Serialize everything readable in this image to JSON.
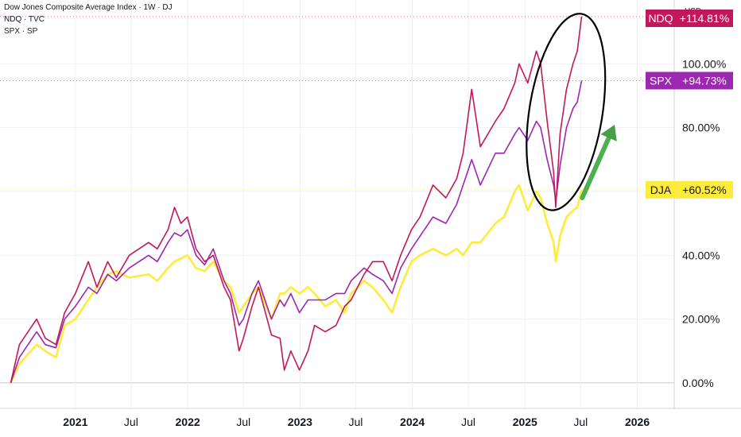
{
  "header": {
    "title": "Dow Jones Composite Average Index · 1W · DJ",
    "series_lines": [
      "NDQ · TVC",
      "SPX · SP"
    ]
  },
  "currency": "USD",
  "chart_data": {
    "type": "line",
    "x_ticks": [
      {
        "date": "2021-01-01",
        "label": "2021",
        "bold": true
      },
      {
        "date": "2021-07-01",
        "label": "Jul",
        "bold": false
      },
      {
        "date": "2022-01-01",
        "label": "2022",
        "bold": true
      },
      {
        "date": "2022-07-01",
        "label": "Jul",
        "bold": false
      },
      {
        "date": "2023-01-01",
        "label": "2023",
        "bold": true
      },
      {
        "date": "2023-07-01",
        "label": "Jul",
        "bold": false
      },
      {
        "date": "2024-01-01",
        "label": "2024",
        "bold": true
      },
      {
        "date": "2024-07-01",
        "label": "Jul",
        "bold": false
      },
      {
        "date": "2025-01-01",
        "label": "2025",
        "bold": true
      },
      {
        "date": "2025-07-01",
        "label": "Jul",
        "bold": false
      },
      {
        "date": "2026-01-01",
        "label": "2026",
        "bold": true
      }
    ],
    "xlim": [
      "2020-05-01",
      "2026-05-01"
    ],
    "ylim": [
      -8,
      120
    ],
    "y_ticks": [
      0,
      20,
      40,
      60,
      80,
      100
    ],
    "y_tick_labels": [
      "0.00%",
      "20.00%",
      "40.00%",
      "60.00%",
      "80.00%",
      "100.00%"
    ],
    "grid": true,
    "series": [
      {
        "name": "NDQ",
        "color": "#c2185b",
        "badge": "+114.81%",
        "last_value": 114.81,
        "points": [
          [
            "2020-06-05",
            0
          ],
          [
            "2020-07-03",
            12
          ],
          [
            "2020-08-28",
            20
          ],
          [
            "2020-09-25",
            14
          ],
          [
            "2020-10-30",
            12
          ],
          [
            "2020-11-27",
            22
          ],
          [
            "2021-01-01",
            28
          ],
          [
            "2021-02-12",
            38
          ],
          [
            "2021-03-12",
            30
          ],
          [
            "2021-04-16",
            38
          ],
          [
            "2021-05-14",
            33
          ],
          [
            "2021-06-25",
            40
          ],
          [
            "2021-08-27",
            44
          ],
          [
            "2021-09-24",
            42
          ],
          [
            "2021-10-29",
            48
          ],
          [
            "2021-11-19",
            55
          ],
          [
            "2021-12-10",
            50
          ],
          [
            "2021-12-31",
            52
          ],
          [
            "2022-01-28",
            42
          ],
          [
            "2022-02-25",
            38
          ],
          [
            "2022-03-25",
            40
          ],
          [
            "2022-04-29",
            30
          ],
          [
            "2022-05-20",
            26
          ],
          [
            "2022-06-17",
            10
          ],
          [
            "2022-07-01",
            14
          ],
          [
            "2022-07-29",
            24
          ],
          [
            "2022-08-19",
            30
          ],
          [
            "2022-09-30",
            15
          ],
          [
            "2022-10-28",
            14
          ],
          [
            "2022-11-11",
            4
          ],
          [
            "2022-12-02",
            10
          ],
          [
            "2022-12-30",
            4
          ],
          [
            "2023-01-27",
            10
          ],
          [
            "2023-02-17",
            18
          ],
          [
            "2023-03-24",
            16
          ],
          [
            "2023-04-28",
            18
          ],
          [
            "2023-05-26",
            24
          ],
          [
            "2023-06-16",
            26
          ],
          [
            "2023-07-28",
            34
          ],
          [
            "2023-08-25",
            38
          ],
          [
            "2023-09-29",
            38
          ],
          [
            "2023-10-27",
            32
          ],
          [
            "2023-11-24",
            40
          ],
          [
            "2023-12-29",
            48
          ],
          [
            "2024-01-26",
            52
          ],
          [
            "2024-03-08",
            62
          ],
          [
            "2024-04-19",
            58
          ],
          [
            "2024-05-24",
            64
          ],
          [
            "2024-06-14",
            72
          ],
          [
            "2024-07-12",
            92
          ],
          [
            "2024-08-09",
            74
          ],
          [
            "2024-09-27",
            82
          ],
          [
            "2024-10-25",
            86
          ],
          [
            "2024-11-29",
            94
          ],
          [
            "2024-12-13",
            100
          ],
          [
            "2025-01-10",
            94
          ],
          [
            "2025-02-07",
            104
          ],
          [
            "2025-02-21",
            100
          ],
          [
            "2025-03-14",
            82
          ],
          [
            "2025-04-04",
            66
          ],
          [
            "2025-04-11",
            55
          ],
          [
            "2025-04-25",
            78
          ],
          [
            "2025-05-16",
            92
          ],
          [
            "2025-06-06",
            100
          ],
          [
            "2025-06-20",
            104
          ],
          [
            "2025-07-04",
            114.81
          ]
        ]
      },
      {
        "name": "SPX",
        "color": "#9c27b0",
        "badge": "+94.73%",
        "last_value": 94.73,
        "points": [
          [
            "2020-06-05",
            0
          ],
          [
            "2020-07-03",
            8
          ],
          [
            "2020-08-28",
            16
          ],
          [
            "2020-09-25",
            12
          ],
          [
            "2020-10-30",
            11
          ],
          [
            "2020-11-27",
            20
          ],
          [
            "2021-01-01",
            24
          ],
          [
            "2021-02-12",
            30
          ],
          [
            "2021-03-12",
            28
          ],
          [
            "2021-04-16",
            34
          ],
          [
            "2021-05-14",
            32
          ],
          [
            "2021-06-25",
            36
          ],
          [
            "2021-08-27",
            40
          ],
          [
            "2021-09-24",
            38
          ],
          [
            "2021-10-29",
            44
          ],
          [
            "2021-11-19",
            47
          ],
          [
            "2021-12-10",
            46
          ],
          [
            "2021-12-31",
            48
          ],
          [
            "2022-01-28",
            40
          ],
          [
            "2022-02-25",
            37
          ],
          [
            "2022-03-25",
            42
          ],
          [
            "2022-04-29",
            32
          ],
          [
            "2022-05-20",
            28
          ],
          [
            "2022-06-17",
            18
          ],
          [
            "2022-07-01",
            20
          ],
          [
            "2022-07-29",
            28
          ],
          [
            "2022-08-19",
            32
          ],
          [
            "2022-09-30",
            20
          ],
          [
            "2022-10-28",
            26
          ],
          [
            "2022-11-11",
            24
          ],
          [
            "2022-12-02",
            28
          ],
          [
            "2022-12-30",
            22
          ],
          [
            "2023-01-27",
            26
          ],
          [
            "2023-02-17",
            26
          ],
          [
            "2023-03-24",
            26
          ],
          [
            "2023-04-28",
            28
          ],
          [
            "2023-05-26",
            28
          ],
          [
            "2023-06-16",
            32
          ],
          [
            "2023-07-28",
            36
          ],
          [
            "2023-08-25",
            34
          ],
          [
            "2023-09-29",
            32
          ],
          [
            "2023-10-27",
            28
          ],
          [
            "2023-11-24",
            36
          ],
          [
            "2023-12-29",
            42
          ],
          [
            "2024-01-26",
            46
          ],
          [
            "2024-03-08",
            52
          ],
          [
            "2024-04-19",
            50
          ],
          [
            "2024-05-24",
            56
          ],
          [
            "2024-06-14",
            62
          ],
          [
            "2024-07-12",
            70
          ],
          [
            "2024-08-09",
            62
          ],
          [
            "2024-09-27",
            72
          ],
          [
            "2024-10-25",
            72
          ],
          [
            "2024-11-29",
            78
          ],
          [
            "2024-12-13",
            80
          ],
          [
            "2025-01-10",
            76
          ],
          [
            "2025-02-07",
            82
          ],
          [
            "2025-02-21",
            80
          ],
          [
            "2025-03-14",
            70
          ],
          [
            "2025-04-04",
            62
          ],
          [
            "2025-04-11",
            57
          ],
          [
            "2025-04-25",
            68
          ],
          [
            "2025-05-16",
            80
          ],
          [
            "2025-06-06",
            86
          ],
          [
            "2025-06-20",
            88
          ],
          [
            "2025-07-04",
            94.73
          ]
        ]
      },
      {
        "name": "DJA",
        "color": "#ffeb3b",
        "badge": "+60.52%",
        "last_value": 60.52,
        "points": [
          [
            "2020-06-05",
            0
          ],
          [
            "2020-07-03",
            6
          ],
          [
            "2020-08-28",
            12
          ],
          [
            "2020-09-25",
            10
          ],
          [
            "2020-10-30",
            8
          ],
          [
            "2020-11-27",
            18
          ],
          [
            "2021-01-01",
            20
          ],
          [
            "2021-02-12",
            26
          ],
          [
            "2021-03-12",
            30
          ],
          [
            "2021-04-16",
            34
          ],
          [
            "2021-05-14",
            35
          ],
          [
            "2021-06-25",
            33
          ],
          [
            "2021-08-27",
            34
          ],
          [
            "2021-09-24",
            32
          ],
          [
            "2021-10-29",
            36
          ],
          [
            "2021-11-19",
            38
          ],
          [
            "2021-12-10",
            39
          ],
          [
            "2021-12-31",
            40
          ],
          [
            "2022-01-28",
            36
          ],
          [
            "2022-02-25",
            35
          ],
          [
            "2022-03-25",
            38
          ],
          [
            "2022-04-29",
            32
          ],
          [
            "2022-05-20",
            30
          ],
          [
            "2022-06-17",
            22
          ],
          [
            "2022-07-01",
            24
          ],
          [
            "2022-07-29",
            28
          ],
          [
            "2022-08-19",
            30
          ],
          [
            "2022-09-30",
            20
          ],
          [
            "2022-10-28",
            28
          ],
          [
            "2022-11-11",
            28
          ],
          [
            "2022-12-02",
            30
          ],
          [
            "2022-12-30",
            28
          ],
          [
            "2023-01-27",
            30
          ],
          [
            "2023-02-17",
            28
          ],
          [
            "2023-03-24",
            24
          ],
          [
            "2023-04-28",
            26
          ],
          [
            "2023-05-26",
            22
          ],
          [
            "2023-06-16",
            28
          ],
          [
            "2023-07-28",
            32
          ],
          [
            "2023-08-25",
            30
          ],
          [
            "2023-09-29",
            26
          ],
          [
            "2023-10-27",
            22
          ],
          [
            "2023-11-24",
            30
          ],
          [
            "2023-12-29",
            38
          ],
          [
            "2024-01-26",
            40
          ],
          [
            "2024-03-08",
            42
          ],
          [
            "2024-04-19",
            40
          ],
          [
            "2024-05-24",
            42
          ],
          [
            "2024-06-14",
            40
          ],
          [
            "2024-07-12",
            44
          ],
          [
            "2024-08-09",
            44
          ],
          [
            "2024-09-27",
            50
          ],
          [
            "2024-10-25",
            52
          ],
          [
            "2024-11-29",
            60
          ],
          [
            "2024-12-13",
            62
          ],
          [
            "2025-01-10",
            54
          ],
          [
            "2025-02-07",
            60
          ],
          [
            "2025-02-21",
            58
          ],
          [
            "2025-03-14",
            50
          ],
          [
            "2025-04-04",
            44
          ],
          [
            "2025-04-11",
            38
          ],
          [
            "2025-04-25",
            46
          ],
          [
            "2025-05-16",
            52
          ],
          [
            "2025-06-06",
            54
          ],
          [
            "2025-06-20",
            55
          ],
          [
            "2025-07-04",
            60.52
          ]
        ]
      }
    ],
    "annotations": [
      {
        "type": "ellipse",
        "color": "#000000",
        "note": "drawn around the 2025 dip and rebound of NDQ and SPX"
      },
      {
        "type": "arrow",
        "color": "#4caf50",
        "direction": "up-right"
      }
    ]
  }
}
